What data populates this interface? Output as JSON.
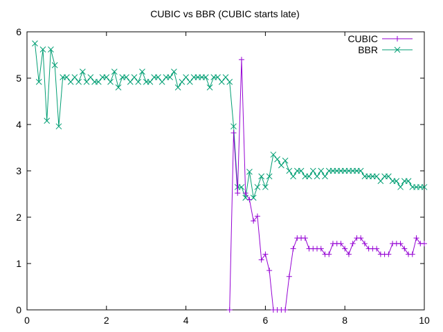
{
  "chart_data": {
    "type": "line",
    "title": "CUBIC vs BBR (CUBIC starts late)",
    "xlabel": "",
    "ylabel": "",
    "xlim": [
      0,
      10
    ],
    "ylim": [
      0,
      6
    ],
    "x_ticks": [
      0,
      2,
      4,
      6,
      8,
      10
    ],
    "y_ticks": [
      0,
      1,
      2,
      3,
      4,
      5,
      6
    ],
    "x_tick_labels": [
      "0",
      "2",
      "4",
      "6",
      "8",
      "10"
    ],
    "y_tick_labels": [
      "0",
      "1",
      "2",
      "3",
      "4",
      "5",
      "6"
    ],
    "grid": false,
    "legend_position": "top-right",
    "series": [
      {
        "name": "CUBIC",
        "color": "#9400d3",
        "marker": "plus",
        "points": [
          [
            5.1,
            0.0
          ],
          [
            5.2,
            3.82
          ],
          [
            5.3,
            2.52
          ],
          [
            5.4,
            5.4
          ],
          [
            5.5,
            2.52
          ],
          [
            5.6,
            2.38
          ],
          [
            5.7,
            1.92
          ],
          [
            5.8,
            2.02
          ],
          [
            5.9,
            1.08
          ],
          [
            6.0,
            1.2
          ],
          [
            6.1,
            0.85
          ],
          [
            6.2,
            0.0
          ],
          [
            6.3,
            0.0
          ],
          [
            6.4,
            0.0
          ],
          [
            6.5,
            0.0
          ],
          [
            6.6,
            0.72
          ],
          [
            6.7,
            1.32
          ],
          [
            6.8,
            1.55
          ],
          [
            6.9,
            1.55
          ],
          [
            7.0,
            1.55
          ],
          [
            7.1,
            1.32
          ],
          [
            7.2,
            1.32
          ],
          [
            7.3,
            1.32
          ],
          [
            7.4,
            1.32
          ],
          [
            7.5,
            1.2
          ],
          [
            7.6,
            1.2
          ],
          [
            7.7,
            1.43
          ],
          [
            7.8,
            1.43
          ],
          [
            7.9,
            1.43
          ],
          [
            8.0,
            1.32
          ],
          [
            8.1,
            1.2
          ],
          [
            8.2,
            1.43
          ],
          [
            8.3,
            1.55
          ],
          [
            8.4,
            1.55
          ],
          [
            8.5,
            1.43
          ],
          [
            8.6,
            1.32
          ],
          [
            8.7,
            1.32
          ],
          [
            8.8,
            1.32
          ],
          [
            8.9,
            1.2
          ],
          [
            9.0,
            1.2
          ],
          [
            9.1,
            1.2
          ],
          [
            9.2,
            1.43
          ],
          [
            9.3,
            1.43
          ],
          [
            9.4,
            1.43
          ],
          [
            9.5,
            1.32
          ],
          [
            9.6,
            1.2
          ],
          [
            9.7,
            1.2
          ],
          [
            9.8,
            1.55
          ],
          [
            9.9,
            1.43
          ],
          [
            10.0,
            1.43
          ]
        ]
      },
      {
        "name": "BBR",
        "color": "#009e73",
        "marker": "cross",
        "points": [
          [
            0.2,
            5.75
          ],
          [
            0.3,
            4.92
          ],
          [
            0.4,
            5.62
          ],
          [
            0.5,
            4.08
          ],
          [
            0.6,
            5.62
          ],
          [
            0.7,
            5.28
          ],
          [
            0.8,
            3.96
          ],
          [
            0.9,
            5.02
          ],
          [
            1.0,
            5.02
          ],
          [
            1.1,
            4.92
          ],
          [
            1.2,
            5.02
          ],
          [
            1.3,
            4.92
          ],
          [
            1.4,
            5.14
          ],
          [
            1.5,
            4.92
          ],
          [
            1.6,
            5.02
          ],
          [
            1.7,
            4.92
          ],
          [
            1.8,
            4.92
          ],
          [
            1.9,
            5.02
          ],
          [
            2.0,
            5.02
          ],
          [
            2.1,
            4.92
          ],
          [
            2.2,
            5.14
          ],
          [
            2.3,
            4.8
          ],
          [
            2.4,
            5.02
          ],
          [
            2.5,
            5.02
          ],
          [
            2.6,
            4.92
          ],
          [
            2.7,
            5.02
          ],
          [
            2.8,
            4.92
          ],
          [
            2.9,
            5.14
          ],
          [
            3.0,
            4.92
          ],
          [
            3.1,
            4.92
          ],
          [
            3.2,
            5.02
          ],
          [
            3.3,
            5.02
          ],
          [
            3.4,
            4.92
          ],
          [
            3.5,
            5.02
          ],
          [
            3.6,
            5.02
          ],
          [
            3.7,
            5.14
          ],
          [
            3.8,
            4.8
          ],
          [
            3.9,
            4.92
          ],
          [
            4.0,
            5.02
          ],
          [
            4.1,
            4.92
          ],
          [
            4.2,
            5.02
          ],
          [
            4.3,
            5.02
          ],
          [
            4.4,
            5.02
          ],
          [
            4.5,
            5.02
          ],
          [
            4.6,
            4.8
          ],
          [
            4.7,
            5.02
          ],
          [
            4.8,
            5.02
          ],
          [
            4.9,
            4.92
          ],
          [
            5.0,
            5.02
          ],
          [
            5.1,
            4.92
          ],
          [
            5.2,
            3.96
          ],
          [
            5.3,
            2.65
          ],
          [
            5.4,
            2.65
          ],
          [
            5.5,
            2.42
          ],
          [
            5.6,
            2.98
          ],
          [
            5.7,
            2.42
          ],
          [
            5.8,
            2.65
          ],
          [
            5.9,
            2.88
          ],
          [
            6.0,
            2.65
          ],
          [
            6.1,
            2.88
          ],
          [
            6.2,
            3.35
          ],
          [
            6.3,
            3.25
          ],
          [
            6.4,
            3.12
          ],
          [
            6.5,
            3.22
          ],
          [
            6.6,
            3.0
          ],
          [
            6.7,
            2.88
          ],
          [
            6.8,
            3.0
          ],
          [
            6.9,
            3.0
          ],
          [
            7.0,
            2.88
          ],
          [
            7.1,
            2.88
          ],
          [
            7.2,
            3.0
          ],
          [
            7.3,
            2.88
          ],
          [
            7.4,
            3.0
          ],
          [
            7.5,
            2.88
          ],
          [
            7.6,
            3.0
          ],
          [
            7.7,
            3.0
          ],
          [
            7.8,
            3.0
          ],
          [
            7.9,
            3.0
          ],
          [
            8.0,
            3.0
          ],
          [
            8.1,
            3.0
          ],
          [
            8.2,
            3.0
          ],
          [
            8.3,
            3.0
          ],
          [
            8.4,
            3.0
          ],
          [
            8.5,
            2.88
          ],
          [
            8.6,
            2.88
          ],
          [
            8.7,
            2.88
          ],
          [
            8.8,
            2.88
          ],
          [
            8.9,
            2.78
          ],
          [
            9.0,
            2.88
          ],
          [
            9.1,
            2.88
          ],
          [
            9.2,
            2.78
          ],
          [
            9.3,
            2.78
          ],
          [
            9.4,
            2.65
          ],
          [
            9.5,
            2.78
          ],
          [
            9.6,
            2.78
          ],
          [
            9.7,
            2.65
          ],
          [
            9.8,
            2.65
          ],
          [
            9.9,
            2.65
          ],
          [
            10.0,
            2.65
          ]
        ]
      }
    ]
  }
}
